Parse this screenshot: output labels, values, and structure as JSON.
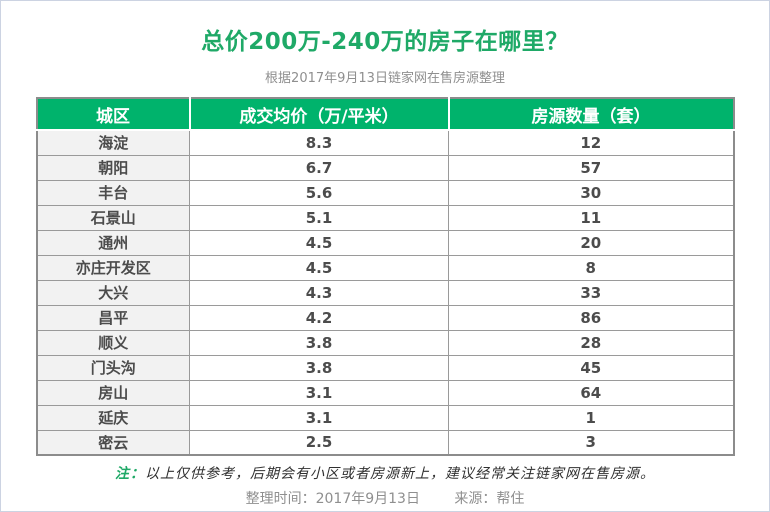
{
  "page": {
    "title": "总价200万-240万的房子在哪里？",
    "subtitle": "根据2017年9月13日链家网在售房源整理"
  },
  "table": {
    "headers": [
      "城区",
      "成交均价（万/平米）",
      "房源数量（套）"
    ],
    "rows": [
      {
        "district": "海淀",
        "price": "8.3",
        "count": "12"
      },
      {
        "district": "朝阳",
        "price": "6.7",
        "count": "57"
      },
      {
        "district": "丰台",
        "price": "5.6",
        "count": "30"
      },
      {
        "district": "石景山",
        "price": "5.1",
        "count": "11"
      },
      {
        "district": "通州",
        "price": "4.5",
        "count": "20"
      },
      {
        "district": "亦庄开发区",
        "price": "4.5",
        "count": "8"
      },
      {
        "district": "大兴",
        "price": "4.3",
        "count": "33"
      },
      {
        "district": "昌平",
        "price": "4.2",
        "count": "86"
      },
      {
        "district": "顺义",
        "price": "3.8",
        "count": "28"
      },
      {
        "district": "门头沟",
        "price": "3.8",
        "count": "45"
      },
      {
        "district": "房山",
        "price": "3.1",
        "count": "64"
      },
      {
        "district": "延庆",
        "price": "3.1",
        "count": "1"
      },
      {
        "district": "密云",
        "price": "2.5",
        "count": "3"
      }
    ]
  },
  "footer": {
    "note_label": "注：",
    "note_text": "以上仅供参考，后期会有小区或者房源新上，建议经常关注链家网在售房源。",
    "compiled": "整理时间：2017年9月13日",
    "source": "来源：帮住"
  },
  "colors": {
    "title_green": "#1fa967",
    "header_green": "#00b36c",
    "cell_text": "#4c4c4c",
    "first_col_bg": "#f2f2f2",
    "border_gray": "#9a9a9a",
    "muted_gray": "#8f8f8f"
  },
  "chart_data": {
    "type": "table",
    "title": "总价200万-240万的房子在哪里？",
    "subtitle": "根据2017年9月13日链家网在售房源整理",
    "columns": [
      "城区",
      "成交均价（万/平米）",
      "房源数量（套）"
    ],
    "rows": [
      [
        "海淀",
        8.3,
        12
      ],
      [
        "朝阳",
        6.7,
        57
      ],
      [
        "丰台",
        5.6,
        30
      ],
      [
        "石景山",
        5.1,
        11
      ],
      [
        "通州",
        4.5,
        20
      ],
      [
        "亦庄开发区",
        4.5,
        8
      ],
      [
        "大兴",
        4.3,
        33
      ],
      [
        "昌平",
        4.2,
        86
      ],
      [
        "顺义",
        3.8,
        28
      ],
      [
        "门头沟",
        3.8,
        45
      ],
      [
        "房山",
        3.1,
        64
      ],
      [
        "延庆",
        3.1,
        1
      ],
      [
        "密云",
        2.5,
        3
      ]
    ],
    "note": "注：以上仅供参考，后期会有小区或者房源新上，建议经常关注链家网在售房源。",
    "compiled": "整理时间：2017年9月13日",
    "source": "来源：帮住"
  }
}
